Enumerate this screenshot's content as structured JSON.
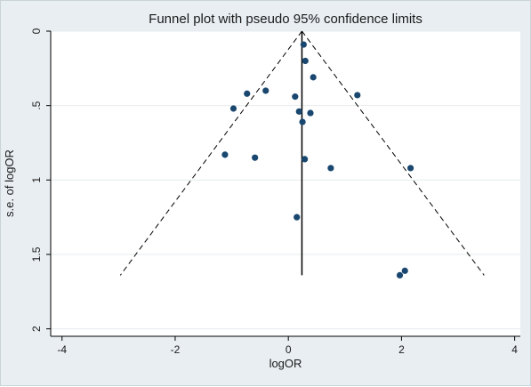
{
  "chart_data": {
    "type": "scatter",
    "title": "Funnel plot with pseudo 95% confidence limits",
    "xlabel": "logOR",
    "ylabel": "s.e. of logOR",
    "xlim": [
      -4.2,
      4.1
    ],
    "ylim": [
      0,
      2.05
    ],
    "y_inverted": true,
    "grid": "horizontal",
    "xticks": [
      -4,
      -2,
      0,
      2,
      4
    ],
    "xtick_labels": [
      "-4",
      "-2",
      "0",
      "2",
      "4"
    ],
    "yticks": [
      0,
      0.5,
      1,
      1.5,
      2
    ],
    "ytick_labels": [
      "0",
      ".5",
      "1",
      "1.5",
      "2"
    ],
    "pooled_estimate": 0.24,
    "funnel": {
      "apex": [
        0.24,
        0
      ],
      "left_base": [
        -2.97,
        1.64
      ],
      "right_base": [
        3.46,
        1.64
      ]
    },
    "points": [
      {
        "x": 0.27,
        "y": 0.09
      },
      {
        "x": 0.3,
        "y": 0.2
      },
      {
        "x": 0.44,
        "y": 0.31
      },
      {
        "x": -0.73,
        "y": 0.42
      },
      {
        "x": -0.4,
        "y": 0.4
      },
      {
        "x": 0.12,
        "y": 0.44
      },
      {
        "x": 1.22,
        "y": 0.43
      },
      {
        "x": -0.97,
        "y": 0.52
      },
      {
        "x": 0.19,
        "y": 0.54
      },
      {
        "x": 0.39,
        "y": 0.55
      },
      {
        "x": 0.25,
        "y": 0.61
      },
      {
        "x": -1.12,
        "y": 0.83
      },
      {
        "x": -0.59,
        "y": 0.85
      },
      {
        "x": 0.29,
        "y": 0.86
      },
      {
        "x": 0.75,
        "y": 0.92
      },
      {
        "x": 2.16,
        "y": 0.92
      },
      {
        "x": 0.15,
        "y": 1.25
      },
      {
        "x": 2.06,
        "y": 1.61
      },
      {
        "x": 1.97,
        "y": 1.64
      }
    ],
    "colors": {
      "plot_region": "#ffffff",
      "outer": "#e8eef2",
      "grid": "#e6ecef",
      "points": "#1a476f",
      "line": "#000000"
    }
  }
}
